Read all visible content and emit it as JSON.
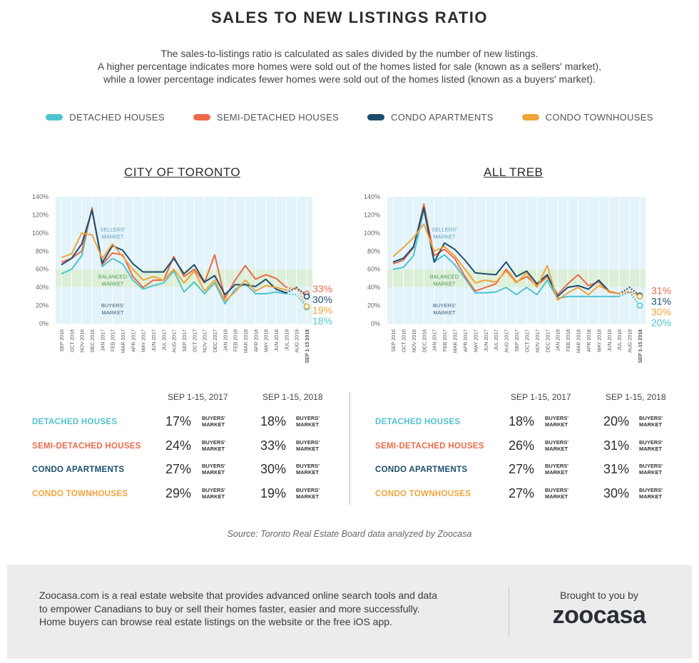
{
  "title": "SALES TO NEW LISTINGS RATIO",
  "subtitle": [
    "The sales-to-listings ratio is calculated as sales divided by the number of new listings.",
    "A higher percentage indicates more homes were sold out of the homes listed for sale (known as a sellers' market),",
    "while a lower percentage indicates fewer homes were sold out of the homes listed (known as a buyers' market)."
  ],
  "legend": [
    {
      "label": "DETACHED HOUSES",
      "color": "#4fc3d1"
    },
    {
      "label": "SEMI-DETACHED HOUSES",
      "color": "#ec6a4a"
    },
    {
      "label": "CONDO APARTMENTS",
      "color": "#1d4e6e"
    },
    {
      "label": "CONDO TOWNHOUSES",
      "color": "#f0a43a"
    }
  ],
  "zones": {
    "sellers": "SELLERS' MARKET",
    "balanced": "BALANCED MARKET",
    "buyers": "BUYERS' MARKET"
  },
  "chart_data": [
    {
      "type": "line",
      "title": "CITY OF TORONTO",
      "ylim": [
        0,
        140
      ],
      "yticks": [
        "0%",
        "20%",
        "40%",
        "60%",
        "80%",
        "100%",
        "120%",
        "140%"
      ],
      "categories": [
        "SEP 2016",
        "OCT 2016",
        "NOV 2016",
        "DEC 2016",
        "JAN 2017",
        "FEB 2017",
        "MAR 2017",
        "APR 2017",
        "MAY 2017",
        "JUN 2017",
        "JUL 2017",
        "AUG 2017",
        "SEP 2017",
        "OCT 2017",
        "NOV 2017",
        "DEC 2017",
        "JAN 2018",
        "FEB 2018",
        "MAR 2018",
        "APR 2018",
        "MAY 2018",
        "JUN 2018",
        "JUL 2018",
        "AUG 2018",
        "SEP 1-15 2018"
      ],
      "series": [
        {
          "name": "DETACHED HOUSES",
          "color": "#4fc3d1",
          "values": [
            55,
            60,
            75,
            128,
            63,
            72,
            66,
            48,
            38,
            42,
            45,
            58,
            35,
            46,
            33,
            45,
            22,
            38,
            44,
            33,
            33,
            35,
            33,
            32,
            18
          ],
          "end_label": "18%"
        },
        {
          "name": "SEMI-DETACHED HOUSES",
          "color": "#ec6a4a",
          "values": [
            68,
            72,
            80,
            127,
            65,
            78,
            76,
            52,
            40,
            48,
            48,
            74,
            52,
            60,
            45,
            76,
            28,
            48,
            64,
            49,
            54,
            50,
            40,
            38,
            33
          ],
          "end_label": "33%"
        },
        {
          "name": "CONDO APARTMENTS",
          "color": "#1d4e6e",
          "values": [
            65,
            72,
            88,
            125,
            67,
            86,
            81,
            66,
            57,
            57,
            57,
            72,
            55,
            65,
            46,
            53,
            32,
            43,
            43,
            41,
            49,
            38,
            34,
            40,
            30
          ],
          "end_label": "30%"
        },
        {
          "name": "CONDO TOWNHOUSES",
          "color": "#f0a43a",
          "values": [
            73,
            77,
            100,
            98,
            72,
            88,
            74,
            60,
            48,
            52,
            48,
            60,
            45,
            58,
            36,
            48,
            25,
            35,
            48,
            36,
            42,
            40,
            37,
            40,
            19
          ],
          "end_label": "19%"
        }
      ]
    },
    {
      "type": "line",
      "title": "ALL TREB",
      "ylim": [
        0,
        140
      ],
      "yticks": [
        "0%",
        "20%",
        "40%",
        "60%",
        "80%",
        "100%",
        "120%",
        "140%"
      ],
      "categories": [
        "SEP 2016",
        "OCT 2016",
        "NOV 2016",
        "DEC 2016",
        "JAN 2017",
        "FEB 2017",
        "MAR 2017",
        "APR 2017",
        "MAY 2017",
        "JUN 2017",
        "JUL 2017",
        "AUG 2017",
        "SEP 2017",
        "OCT 2017",
        "NOV 2017",
        "DEC 2017",
        "JAN 2018",
        "FEB 2018",
        "MAR 2018",
        "APR 2018",
        "MAY 2018",
        "JUN 2018",
        "JUL 2018",
        "AUG 2018",
        "SEP 1-15 2018"
      ],
      "series": [
        {
          "name": "DETACHED HOUSES",
          "color": "#4fc3d1",
          "values": [
            60,
            62,
            75,
            125,
            68,
            76,
            65,
            50,
            34,
            34,
            35,
            40,
            32,
            40,
            32,
            48,
            28,
            30,
            30,
            30,
            30,
            30,
            30,
            35,
            20
          ],
          "end_label": "20%"
        },
        {
          "name": "SEMI-DETACHED HOUSES",
          "color": "#ec6a4a",
          "values": [
            66,
            70,
            84,
            132,
            75,
            82,
            72,
            52,
            36,
            40,
            44,
            60,
            46,
            52,
            42,
            52,
            32,
            44,
            54,
            42,
            46,
            35,
            33,
            35,
            31
          ],
          "end_label": "31%"
        },
        {
          "name": "CONDO APARTMENTS",
          "color": "#1d4e6e",
          "values": [
            68,
            72,
            85,
            128,
            68,
            89,
            82,
            70,
            56,
            55,
            54,
            68,
            52,
            58,
            44,
            54,
            30,
            40,
            42,
            38,
            48,
            36,
            33,
            40,
            31
          ],
          "end_label": "31%"
        },
        {
          "name": "CONDO TOWNHOUSES",
          "color": "#f0a43a",
          "values": [
            74,
            84,
            95,
            110,
            80,
            85,
            75,
            60,
            45,
            48,
            46,
            58,
            45,
            56,
            40,
            64,
            26,
            34,
            40,
            32,
            42,
            36,
            33,
            36,
            30
          ],
          "end_label": "30%"
        }
      ]
    }
  ],
  "tables": [
    {
      "col_2017": "SEP 1-15, 2017",
      "col_2018": "SEP 1-15, 2018",
      "rows": [
        {
          "label": "DETACHED HOUSES",
          "color": "#4fc3d1",
          "v2017": "17%",
          "m2017": "BUYERS' MARKET",
          "v2018": "18%",
          "m2018": "BUYERS' MARKET"
        },
        {
          "label": "SEMI-DETACHED HOUSES",
          "color": "#ec6a4a",
          "v2017": "24%",
          "m2017": "BUYERS' MARKET",
          "v2018": "33%",
          "m2018": "BUYERS' MARKET"
        },
        {
          "label": "CONDO APARTMENTS",
          "color": "#1d4e6e",
          "v2017": "27%",
          "m2017": "BUYERS' MARKET",
          "v2018": "30%",
          "m2018": "BUYERS' MARKET"
        },
        {
          "label": "CONDO TOWNHOUSES",
          "color": "#f0a43a",
          "v2017": "29%",
          "m2017": "BUYERS' MARKET",
          "v2018": "19%",
          "m2018": "BUYERS' MARKET"
        }
      ]
    },
    {
      "col_2017": "SEP 1-15, 2017",
      "col_2018": "SEP 1-15, 2018",
      "rows": [
        {
          "label": "DETACHED HOUSES",
          "color": "#4fc3d1",
          "v2017": "18%",
          "m2017": "BUYERS' MARKET",
          "v2018": "20%",
          "m2018": "BUYERS' MARKET"
        },
        {
          "label": "SEMI-DETACHED HOUSES",
          "color": "#ec6a4a",
          "v2017": "26%",
          "m2017": "BUYERS' MARKET",
          "v2018": "31%",
          "m2018": "BUYERS' MARKET"
        },
        {
          "label": "CONDO APARTMENTS",
          "color": "#1d4e6e",
          "v2017": "27%",
          "m2017": "BUYERS' MARKET",
          "v2018": "31%",
          "m2018": "BUYERS' MARKET"
        },
        {
          "label": "CONDO TOWNHOUSES",
          "color": "#f0a43a",
          "v2017": "27%",
          "m2017": "BUYERS' MARKET",
          "v2018": "30%",
          "m2018": "BUYERS' MARKET"
        }
      ]
    }
  ],
  "source": "Source: Toronto Real Estate Board data analyzed by Zoocasa",
  "footer": {
    "text": [
      "Zoocasa.com is a real estate website that provides advanced online search tools and data",
      "to empower Canadians to buy or sell their homes faster, easier and more successfully.",
      "Home buyers can browse real estate listings on the website or the free iOS app."
    ],
    "brought": "Brought to you by",
    "logo": "zoocasa"
  }
}
